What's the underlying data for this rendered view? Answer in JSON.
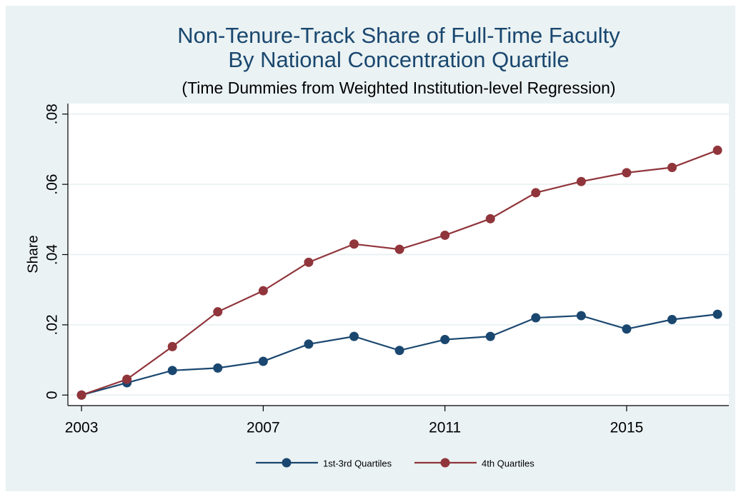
{
  "chart_data": {
    "type": "line",
    "title": "Non-Tenure-Track Share of Full-Time Faculty",
    "title_line2": "By National Concentration Quartile",
    "subtitle": "(Time Dummies from Weighted Institution-level Regression)",
    "y_label": "Share",
    "x": [
      2003,
      2004,
      2005,
      2006,
      2007,
      2008,
      2009,
      2010,
      2011,
      2012,
      2013,
      2014,
      2015,
      2016,
      2017
    ],
    "series": [
      {
        "name": "1st-3rd Quartiles",
        "color": "#1a476f",
        "values": [
          0,
          0.0035,
          0.007,
          0.0077,
          0.0096,
          0.0145,
          0.0167,
          0.0127,
          0.0158,
          0.0167,
          0.022,
          0.0226,
          0.0188,
          0.0215,
          0.023
        ]
      },
      {
        "name": "4th Quartiles",
        "color": "#90353b",
        "values": [
          0,
          0.0045,
          0.0138,
          0.0237,
          0.0297,
          0.0378,
          0.043,
          0.0415,
          0.0455,
          0.0502,
          0.0576,
          0.0608,
          0.0633,
          0.0648,
          0.0697
        ]
      }
    ],
    "xlim": [
      2002.7,
      2017.25
    ],
    "xticks": [
      2003,
      2007,
      2011,
      2015
    ],
    "ylim": [
      -0.003,
      0.083
    ],
    "yticks": [
      0,
      {
        "value": 0.02,
        "label": ".02"
      },
      {
        "value": 0.04,
        "label": ".04"
      },
      {
        "value": 0.06,
        "label": ".06"
      },
      {
        "value": 0.08,
        "label": ".08"
      }
    ],
    "grid": true,
    "legend": "bottom"
  }
}
